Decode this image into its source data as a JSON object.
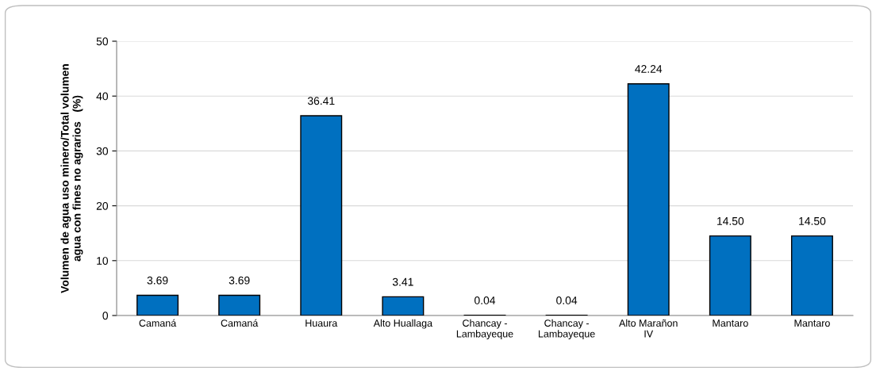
{
  "chart_data": {
    "type": "bar",
    "ylabel": "Volumen de agua uso minero/Total volumen\nagua con fines no agrarios   (%)",
    "categories": [
      "Camaná",
      "Camaná",
      "Huaura",
      "Alto Huallaga",
      "Chancay -\nLambayeque",
      "Chancay -\nLambayeque",
      "Alto Marañon\nIV",
      "Mantaro",
      "Mantaro"
    ],
    "values": [
      3.69,
      3.69,
      36.41,
      3.41,
      0.04,
      0.04,
      42.24,
      14.5,
      14.5
    ],
    "value_labels": [
      "3.69",
      "3.69",
      "36.41",
      "3.41",
      "0.04",
      "0.04",
      "42.24",
      "14.50",
      "14.50"
    ],
    "color": "#0070c0",
    "ylim": [
      0,
      50
    ],
    "yticks": [
      0,
      10,
      20,
      30,
      40,
      50
    ],
    "grid": "y",
    "legend": false
  }
}
